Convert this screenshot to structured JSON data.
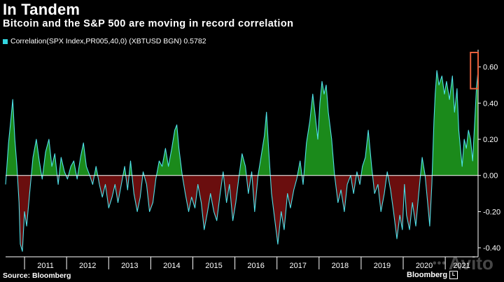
{
  "title": "In Tandem",
  "subtitle": "Bitcoin and the S&P 500 are moving in record correlation",
  "legend": {
    "label": "Correlation(SPX Index,PR005,40,0) (XBTUSD BGN) 0.5782",
    "color": "#33d6e0"
  },
  "source": "Source: Bloomberg",
  "brand": "Bloomberg",
  "brand_mark": "L",
  "watermark": {
    "dots": "•••",
    "text": "Avito"
  },
  "colors": {
    "line": "#4fe0e8",
    "positive": "#1b8a1b",
    "negative": "#6a0e0e",
    "highlight": "#e8603c",
    "zero": "#ffffff"
  },
  "chart_data": {
    "type": "area",
    "title": "In Tandem",
    "subtitle": "Bitcoin and the S&P 500 are moving in record correlation",
    "series_name": "Correlation(SPX Index,PR005,40,0) (XBTUSD BGN)",
    "last_value": 0.5782,
    "xlabel": "",
    "ylabel": "",
    "ylim": [
      -0.45,
      0.68
    ],
    "y_ticks": [
      -0.4,
      -0.2,
      0.0,
      0.2,
      0.4,
      0.6
    ],
    "y_tick_labels": [
      "-0.40",
      "-0.20",
      "0.00",
      "0.20",
      "0.40",
      "0.60"
    ],
    "x_range": [
      2010.55,
      2021.78
    ],
    "x_ticks": [
      2011,
      2012,
      2013,
      2014,
      2015,
      2016,
      2017,
      2018,
      2019,
      2020,
      2021
    ],
    "x_tick_labels": [
      "2011",
      "2012",
      "2013",
      "2014",
      "2015",
      "2016",
      "2017",
      "2018",
      "2019",
      "2020",
      "2021"
    ],
    "highlight_region": {
      "x": [
        2021.6,
        2021.78
      ],
      "y": [
        0.48,
        0.68
      ]
    },
    "points": [
      [
        2010.55,
        -0.05
      ],
      [
        2010.62,
        0.18
      ],
      [
        2010.68,
        0.32
      ],
      [
        2010.72,
        0.42
      ],
      [
        2010.77,
        0.2
      ],
      [
        2010.82,
        0.05
      ],
      [
        2010.87,
        -0.15
      ],
      [
        2010.9,
        -0.38
      ],
      [
        2010.95,
        -0.42
      ],
      [
        2011.0,
        -0.2
      ],
      [
        2011.05,
        -0.28
      ],
      [
        2011.12,
        -0.1
      ],
      [
        2011.2,
        0.1
      ],
      [
        2011.28,
        0.2
      ],
      [
        2011.35,
        0.08
      ],
      [
        2011.42,
        -0.02
      ],
      [
        2011.5,
        0.13
      ],
      [
        2011.58,
        0.2
      ],
      [
        2011.65,
        0.05
      ],
      [
        2011.72,
        0.12
      ],
      [
        2011.8,
        -0.05
      ],
      [
        2011.87,
        0.1
      ],
      [
        2011.95,
        0.02
      ],
      [
        2012.02,
        -0.02
      ],
      [
        2012.1,
        0.05
      ],
      [
        2012.17,
        0.08
      ],
      [
        2012.25,
        -0.02
      ],
      [
        2012.33,
        0.1
      ],
      [
        2012.4,
        0.18
      ],
      [
        2012.47,
        0.05
      ],
      [
        2012.55,
        0.0
      ],
      [
        2012.62,
        -0.05
      ],
      [
        2012.7,
        0.05
      ],
      [
        2012.78,
        -0.05
      ],
      [
        2012.85,
        -0.12
      ],
      [
        2012.92,
        -0.05
      ],
      [
        2013.0,
        -0.18
      ],
      [
        2013.08,
        -0.12
      ],
      [
        2013.15,
        -0.05
      ],
      [
        2013.22,
        -0.15
      ],
      [
        2013.3,
        -0.05
      ],
      [
        2013.38,
        0.05
      ],
      [
        2013.45,
        -0.08
      ],
      [
        2013.52,
        0.08
      ],
      [
        2013.6,
        -0.1
      ],
      [
        2013.68,
        -0.2
      ],
      [
        2013.75,
        -0.12
      ],
      [
        2013.82,
        0.02
      ],
      [
        2013.9,
        -0.05
      ],
      [
        2013.97,
        -0.2
      ],
      [
        2014.05,
        -0.15
      ],
      [
        2014.12,
        -0.02
      ],
      [
        2014.2,
        0.08
      ],
      [
        2014.27,
        0.05
      ],
      [
        2014.35,
        0.15
      ],
      [
        2014.42,
        0.05
      ],
      [
        2014.5,
        0.15
      ],
      [
        2014.57,
        0.25
      ],
      [
        2014.62,
        0.28
      ],
      [
        2014.67,
        0.15
      ],
      [
        2014.75,
        0.0
      ],
      [
        2014.82,
        -0.1
      ],
      [
        2014.9,
        -0.2
      ],
      [
        2014.97,
        -0.12
      ],
      [
        2015.05,
        -0.18
      ],
      [
        2015.12,
        -0.05
      ],
      [
        2015.2,
        -0.15
      ],
      [
        2015.27,
        -0.3
      ],
      [
        2015.35,
        -0.2
      ],
      [
        2015.42,
        -0.1
      ],
      [
        2015.5,
        -0.2
      ],
      [
        2015.57,
        -0.25
      ],
      [
        2015.65,
        -0.1
      ],
      [
        2015.72,
        0.02
      ],
      [
        2015.8,
        -0.15
      ],
      [
        2015.87,
        -0.05
      ],
      [
        2015.95,
        -0.25
      ],
      [
        2016.02,
        -0.15
      ],
      [
        2016.1,
        0.0
      ],
      [
        2016.17,
        0.12
      ],
      [
        2016.25,
        0.05
      ],
      [
        2016.32,
        -0.1
      ],
      [
        2016.4,
        0.02
      ],
      [
        2016.47,
        -0.2
      ],
      [
        2016.55,
        0.0
      ],
      [
        2016.62,
        0.1
      ],
      [
        2016.7,
        0.22
      ],
      [
        2016.75,
        0.35
      ],
      [
        2016.8,
        0.15
      ],
      [
        2016.87,
        -0.1
      ],
      [
        2016.95,
        -0.25
      ],
      [
        2017.02,
        -0.38
      ],
      [
        2017.1,
        -0.2
      ],
      [
        2017.17,
        -0.3
      ],
      [
        2017.25,
        -0.1
      ],
      [
        2017.32,
        -0.18
      ],
      [
        2017.4,
        -0.08
      ],
      [
        2017.47,
        -0.02
      ],
      [
        2017.55,
        0.08
      ],
      [
        2017.62,
        -0.05
      ],
      [
        2017.7,
        0.18
      ],
      [
        2017.78,
        0.3
      ],
      [
        2017.85,
        0.45
      ],
      [
        2017.9,
        0.35
      ],
      [
        2017.97,
        0.2
      ],
      [
        2018.02,
        0.4
      ],
      [
        2018.07,
        0.52
      ],
      [
        2018.12,
        0.45
      ],
      [
        2018.17,
        0.5
      ],
      [
        2018.22,
        0.35
      ],
      [
        2018.3,
        0.2
      ],
      [
        2018.37,
        0.0
      ],
      [
        2018.45,
        -0.15
      ],
      [
        2018.52,
        -0.08
      ],
      [
        2018.6,
        -0.2
      ],
      [
        2018.67,
        -0.05
      ],
      [
        2018.75,
        0.0
      ],
      [
        2018.82,
        -0.1
      ],
      [
        2018.9,
        0.02
      ],
      [
        2018.97,
        -0.05
      ],
      [
        2019.03,
        0.05
      ],
      [
        2019.1,
        0.1
      ],
      [
        2019.17,
        0.25
      ],
      [
        2019.25,
        0.05
      ],
      [
        2019.32,
        -0.1
      ],
      [
        2019.4,
        -0.05
      ],
      [
        2019.47,
        -0.2
      ],
      [
        2019.55,
        -0.1
      ],
      [
        2019.62,
        0.02
      ],
      [
        2019.7,
        -0.08
      ],
      [
        2019.77,
        -0.2
      ],
      [
        2019.85,
        -0.35
      ],
      [
        2019.92,
        -0.22
      ],
      [
        2019.98,
        -0.3
      ],
      [
        2020.03,
        -0.05
      ],
      [
        2020.08,
        -0.22
      ],
      [
        2020.15,
        -0.3
      ],
      [
        2020.22,
        -0.15
      ],
      [
        2020.3,
        -0.28
      ],
      [
        2020.37,
        -0.1
      ],
      [
        2020.45,
        0.1
      ],
      [
        2020.52,
        0.0
      ],
      [
        2020.58,
        -0.15
      ],
      [
        2020.63,
        -0.28
      ],
      [
        2020.68,
        -0.05
      ],
      [
        2020.73,
        0.3
      ],
      [
        2020.76,
        0.45
      ],
      [
        2020.8,
        0.58
      ],
      [
        2020.85,
        0.5
      ],
      [
        2020.92,
        0.55
      ],
      [
        2020.98,
        0.45
      ],
      [
        2021.03,
        0.52
      ],
      [
        2021.1,
        0.42
      ],
      [
        2021.17,
        0.55
      ],
      [
        2021.22,
        0.35
      ],
      [
        2021.28,
        0.48
      ],
      [
        2021.32,
        0.25
      ],
      [
        2021.36,
        0.15
      ],
      [
        2021.4,
        0.05
      ],
      [
        2021.45,
        0.2
      ],
      [
        2021.5,
        0.15
      ],
      [
        2021.55,
        0.25
      ],
      [
        2021.6,
        0.2
      ],
      [
        2021.65,
        0.08
      ],
      [
        2021.7,
        0.3
      ],
      [
        2021.74,
        0.48
      ],
      [
        2021.78,
        0.58
      ]
    ]
  }
}
